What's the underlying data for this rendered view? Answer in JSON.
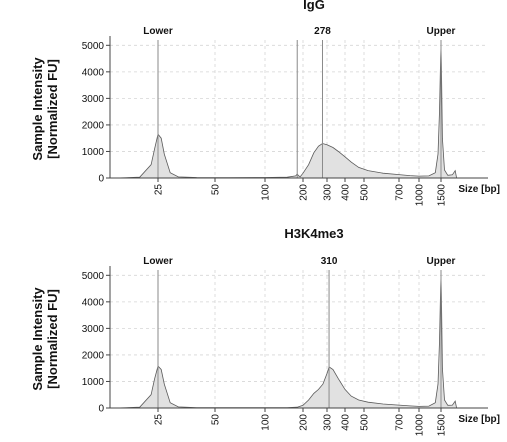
{
  "chart_data": [
    {
      "type": "area",
      "title": "IgG",
      "ylabel": "Sample Intensity\n[Normalized FU]",
      "xlabel": "Size [bp]",
      "x_scale": "log",
      "ylim": [
        0,
        5200
      ],
      "yticks": [
        "0",
        "1000",
        "2000",
        "3000",
        "4000",
        "5000"
      ],
      "xticks": [
        "25",
        "50",
        "100",
        "200",
        "300",
        "400",
        "500",
        "700",
        "1000",
        "1500"
      ],
      "peak_labels": [
        {
          "label": "Lower",
          "x_bp": 25
        },
        {
          "label": "278",
          "x_bp": 278
        },
        {
          "label": "Upper",
          "x_bp": 1500
        }
      ],
      "markers_bp": [
        25,
        180,
        278,
        1500
      ],
      "series": [
        {
          "x": [
            15,
            20,
            23,
            24,
            25,
            26,
            27,
            29,
            32,
            40,
            60,
            100,
            150,
            175,
            180,
            185,
            190,
            200,
            220,
            240,
            260,
            278,
            300,
            330,
            360,
            400,
            430,
            470,
            520,
            600,
            700,
            850,
            1000,
            1200,
            1350,
            1420,
            1460,
            1490,
            1500,
            1510,
            1540,
            1600,
            1700,
            1850,
            1950,
            2000
          ],
          "values": [
            0,
            30,
            500,
            1100,
            1650,
            1500,
            900,
            200,
            40,
            20,
            15,
            20,
            30,
            80,
            150,
            80,
            50,
            180,
            500,
            950,
            1200,
            1300,
            1250,
            1150,
            1000,
            800,
            600,
            400,
            280,
            180,
            130,
            90,
            70,
            80,
            200,
            900,
            2500,
            4500,
            5000,
            4300,
            1500,
            300,
            100,
            120,
            280,
            0
          ]
        }
      ]
    },
    {
      "type": "area",
      "title": "H3K4me3",
      "ylabel": "Sample Intensity\n[Normalized FU]",
      "xlabel": "Size [bp]",
      "x_scale": "log",
      "ylim": [
        0,
        5200
      ],
      "yticks": [
        "0",
        "1000",
        "2000",
        "3000",
        "4000",
        "5000"
      ],
      "xticks": [
        "25",
        "50",
        "100",
        "200",
        "300",
        "400",
        "500",
        "700",
        "1000",
        "1500"
      ],
      "peak_labels": [
        {
          "label": "Lower",
          "x_bp": 25
        },
        {
          "label": "310",
          "x_bp": 310
        },
        {
          "label": "Upper",
          "x_bp": 1500
        }
      ],
      "markers_bp": [
        25,
        310,
        1500
      ],
      "series": [
        {
          "x": [
            15,
            20,
            23,
            24,
            25,
            26,
            27,
            29,
            32,
            40,
            60,
            100,
            150,
            180,
            200,
            220,
            240,
            260,
            280,
            300,
            310,
            330,
            360,
            400,
            430,
            470,
            520,
            600,
            700,
            850,
            1000,
            1200,
            1350,
            1420,
            1460,
            1490,
            1500,
            1510,
            1540,
            1600,
            1700,
            1850,
            1950,
            2000
          ],
          "values": [
            0,
            30,
            500,
            1100,
            1580,
            1450,
            900,
            200,
            40,
            15,
            10,
            10,
            15,
            30,
            100,
            300,
            550,
            700,
            900,
            1300,
            1550,
            1450,
            1100,
            700,
            450,
            300,
            220,
            150,
            110,
            80,
            60,
            70,
            200,
            900,
            2500,
            4500,
            5000,
            4300,
            1500,
            300,
            100,
            110,
            260,
            0
          ]
        }
      ]
    }
  ]
}
